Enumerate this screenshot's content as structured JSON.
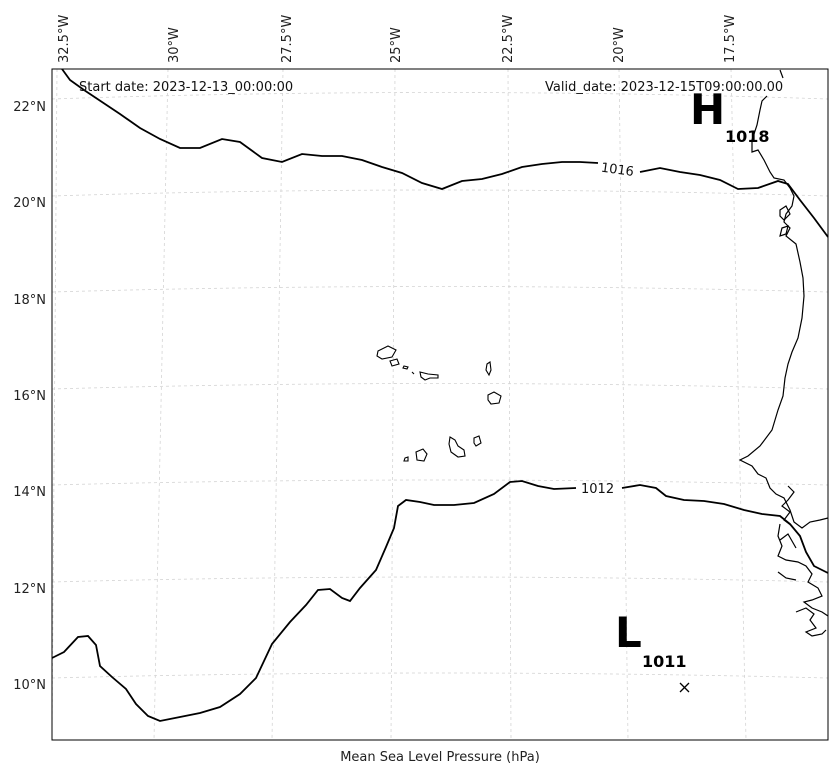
{
  "header": {
    "start_date": "Start date: 2023-12-13_00:00:00",
    "valid_date": "Valid_date: 2023-12-15T09:00:00.00"
  },
  "caption": "Mean Sea Level Pressure (hPa)",
  "axes": {
    "lon_ticks": [
      "32.5°W",
      "30°W",
      "27.5°W",
      "25°W",
      "22.5°W",
      "20°W",
      "17.5°W"
    ],
    "lat_ticks": [
      "22°N",
      "20°N",
      "18°N",
      "16°N",
      "14°N",
      "12°N",
      "10°N"
    ]
  },
  "isobars": [
    {
      "label": "1016"
    },
    {
      "label": "1012"
    }
  ],
  "pressure_centers": [
    {
      "type_letter": "H",
      "value": "1018"
    },
    {
      "type_letter": "L",
      "value": "1011"
    }
  ],
  "colors": {
    "isobar": "#000000",
    "grid": "#d4d4d4",
    "coast": "#000000"
  }
}
